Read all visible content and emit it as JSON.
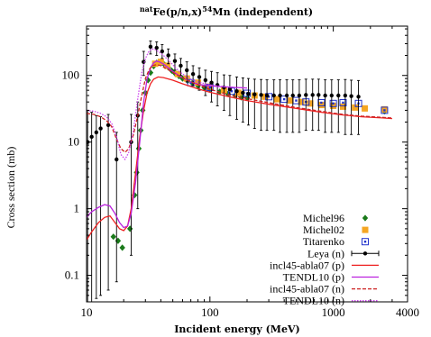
{
  "chart_data": {
    "type": "scatter",
    "title": "natFe(p/n,x)54Mn (independent)",
    "title_parts": {
      "sup_pre": "nat",
      "element": "Fe(p/n,x)",
      "sup_mass": "54",
      "product": "Mn (independent)"
    },
    "xlabel": "Incident energy (MeV)",
    "ylabel": "Cross section (mb)",
    "x_scale": "log",
    "y_scale": "log",
    "xlim": [
      10,
      4000
    ],
    "ylim": [
      0.04,
      550
    ],
    "x_ticks": [
      10,
      100,
      1000,
      4000
    ],
    "x_tick_labels": [
      "10",
      "100",
      "1000",
      "4000"
    ],
    "y_ticks": [
      0.1,
      1,
      10,
      100
    ],
    "y_tick_labels": [
      "0.1",
      "1",
      "10",
      "100"
    ],
    "grid": false,
    "legend_position": "bottom-right",
    "series": [
      {
        "name": "Michel96",
        "kind": "points",
        "marker": "diamond",
        "color": "#1a7a1a",
        "points": [
          [
            16.5,
            0.38
          ],
          [
            18.0,
            0.33
          ],
          [
            19.5,
            0.26
          ],
          [
            22.5,
            0.5
          ],
          [
            24.5,
            1.6
          ],
          [
            25.5,
            3.5
          ],
          [
            26.5,
            8.0
          ],
          [
            27.5,
            15.0
          ],
          [
            28.5,
            30.0
          ],
          [
            30.0,
            55.0
          ],
          [
            31.5,
            85.0
          ],
          [
            33.0,
            110.0
          ],
          [
            35.0,
            138.0
          ],
          [
            37.0,
            155.0
          ],
          [
            39.0,
            158.0
          ],
          [
            41.0,
            155.0
          ],
          [
            43.0,
            145.0
          ],
          [
            46.0,
            132.0
          ],
          [
            49.0,
            118.0
          ],
          [
            52.0,
            108.0
          ],
          [
            56.0,
            98.0
          ],
          [
            60.0,
            90.0
          ],
          [
            66.0,
            83.0
          ],
          [
            72.0,
            77.0
          ],
          [
            80.0,
            70.0
          ],
          [
            90.0,
            66.0
          ],
          [
            100.0,
            62.0
          ],
          [
            120.0,
            57.0
          ],
          [
            140.0,
            53.0
          ],
          [
            160.0,
            50.0
          ],
          [
            180.0,
            47.0
          ],
          [
            200.0,
            46.0
          ],
          [
            2600.0,
            29.0
          ]
        ]
      },
      {
        "name": "Michel02",
        "kind": "points",
        "marker": "square-filled",
        "color": "#f5a623",
        "points": [
          [
            36.0,
            150.0
          ],
          [
            40.0,
            160.0
          ],
          [
            45.0,
            140.0
          ],
          [
            55.0,
            105.0
          ],
          [
            65.0,
            90.0
          ],
          [
            80.0,
            78.0
          ],
          [
            100.0,
            68.0
          ],
          [
            130.0,
            60.0
          ],
          [
            170.0,
            55.0
          ],
          [
            230.0,
            50.0
          ],
          [
            280.0,
            48.0
          ],
          [
            350.0,
            44.0
          ],
          [
            450.0,
            42.0
          ],
          [
            550.0,
            40.0
          ],
          [
            650.0,
            38.0
          ],
          [
            800.0,
            36.0
          ],
          [
            1000.0,
            35.0
          ],
          [
            1200.0,
            34.0
          ],
          [
            1500.0,
            33.0
          ],
          [
            1800.0,
            32.0
          ],
          [
            2600.0,
            31.0
          ]
        ]
      },
      {
        "name": "Titarenko",
        "kind": "points",
        "marker": "square-open",
        "color": "#2233cc",
        "points": [
          [
            70.0,
            78.0
          ],
          [
            100.0,
            66.0
          ],
          [
            150.0,
            58.0
          ],
          [
            200.0,
            54.0
          ],
          [
            300.0,
            48.0
          ],
          [
            400.0,
            44.0
          ],
          [
            500.0,
            42.0
          ],
          [
            600.0,
            40.0
          ],
          [
            800.0,
            39.0
          ],
          [
            1000.0,
            38.0
          ],
          [
            1200.0,
            39.0
          ],
          [
            1600.0,
            38.0
          ],
          [
            2600.0,
            30.0
          ]
        ]
      },
      {
        "name": "Leya (n)",
        "kind": "errorbar",
        "marker": "dot",
        "color": "#000000",
        "points": [
          [
            10.2,
            10.0,
            0.04,
            30.0
          ],
          [
            11.0,
            12.0,
            0.04,
            28.0
          ],
          [
            12.0,
            14.0,
            0.045,
            25.0
          ],
          [
            13.0,
            16.0,
            0.05,
            24.0
          ],
          [
            15.0,
            18.0,
            0.06,
            26.0
          ],
          [
            17.5,
            5.5,
            0.08,
            14.0
          ],
          [
            23.0,
            10.0,
            0.2,
            26.0
          ],
          [
            26.0,
            25.0,
            1.0,
            40.0
          ],
          [
            29.0,
            160.0,
            100.0,
            230.0
          ],
          [
            33.0,
            270.0,
            210.0,
            330.0
          ],
          [
            37.0,
            260.0,
            200.0,
            320.0
          ],
          [
            41.0,
            230.0,
            180.0,
            290.0
          ],
          [
            46.0,
            200.0,
            150.0,
            250.0
          ],
          [
            52.0,
            165.0,
            120.0,
            210.0
          ],
          [
            58.0,
            140.0,
            100.0,
            180.0
          ],
          [
            65.0,
            120.0,
            80.0,
            160.0
          ],
          [
            73.0,
            105.0,
            70.0,
            140.0
          ],
          [
            82.0,
            95.0,
            60.0,
            130.0
          ],
          [
            92.0,
            85.0,
            50.0,
            120.0
          ],
          [
            103.0,
            78.0,
            40.0,
            115.0
          ],
          [
            115.0,
            72.0,
            35.0,
            110.0
          ],
          [
            130.0,
            66.0,
            30.0,
            102.0
          ],
          [
            145.0,
            62.0,
            25.0,
            100.0
          ],
          [
            165.0,
            58.0,
            22.0,
            95.0
          ],
          [
            185.0,
            55.0,
            20.0,
            92.0
          ],
          [
            205.0,
            53.0,
            18.0,
            90.0
          ],
          [
            230.0,
            52.0,
            16.0,
            88.0
          ],
          [
            260.0,
            51.0,
            15.0,
            87.0
          ],
          [
            290.0,
            50.0,
            15.0,
            86.0
          ],
          [
            330.0,
            50.0,
            15.0,
            86.0
          ],
          [
            370.0,
            50.0,
            14.0,
            86.0
          ],
          [
            420.0,
            50.0,
            14.0,
            86.0
          ],
          [
            470.0,
            50.0,
            14.0,
            86.0
          ],
          [
            530.0,
            50.0,
            14.0,
            86.0
          ],
          [
            600.0,
            51.0,
            15.0,
            88.0
          ],
          [
            680.0,
            51.0,
            15.0,
            88.0
          ],
          [
            760.0,
            51.0,
            15.0,
            88.0
          ],
          [
            860.0,
            50.0,
            14.0,
            86.0
          ],
          [
            970.0,
            50.0,
            14.0,
            86.0
          ],
          [
            1100.0,
            50.0,
            14.0,
            86.0
          ],
          [
            1250.0,
            50.0,
            13.0,
            87.0
          ],
          [
            1400.0,
            49.0,
            13.0,
            85.0
          ],
          [
            1600.0,
            48.0,
            13.0,
            84.0
          ]
        ]
      },
      {
        "name": "incl45-abla07 (p)",
        "kind": "line",
        "style": "solid",
        "color": "#ee2222",
        "points": [
          [
            10.0,
            0.34
          ],
          [
            11.0,
            0.45
          ],
          [
            12.5,
            0.62
          ],
          [
            14.0,
            0.74
          ],
          [
            15.5,
            0.78
          ],
          [
            17.0,
            0.62
          ],
          [
            18.5,
            0.5
          ],
          [
            20.0,
            0.47
          ],
          [
            21.5,
            0.55
          ],
          [
            23.0,
            1.0
          ],
          [
            25.0,
            3.5
          ],
          [
            27.0,
            12.0
          ],
          [
            29.0,
            30.0
          ],
          [
            31.0,
            55.0
          ],
          [
            33.0,
            75.0
          ],
          [
            35.0,
            88.0
          ],
          [
            38.0,
            95.0
          ],
          [
            42.0,
            93.0
          ],
          [
            50.0,
            85.0
          ],
          [
            60.0,
            75.0
          ],
          [
            80.0,
            63.0
          ],
          [
            100.0,
            56.0
          ],
          [
            150.0,
            47.0
          ],
          [
            200.0,
            42.0
          ],
          [
            300.0,
            37.0
          ],
          [
            500.0,
            32.0
          ],
          [
            800.0,
            28.0
          ],
          [
            1200.0,
            25.5
          ],
          [
            1700.0,
            24.0
          ],
          [
            2500.0,
            23.0
          ],
          [
            3000.0,
            22.5
          ]
        ]
      },
      {
        "name": "TENDL10 (p)",
        "kind": "line",
        "style": "solid",
        "color": "#bb22dd",
        "points": [
          [
            10.0,
            0.75
          ],
          [
            11.0,
            0.9
          ],
          [
            12.5,
            1.05
          ],
          [
            14.0,
            1.15
          ],
          [
            15.5,
            1.1
          ],
          [
            17.0,
            0.85
          ],
          [
            18.5,
            0.62
          ],
          [
            20.0,
            0.52
          ],
          [
            21.5,
            0.55
          ],
          [
            23.0,
            0.85
          ],
          [
            25.0,
            2.5
          ],
          [
            27.0,
            10.0
          ],
          [
            29.0,
            40.0
          ],
          [
            31.0,
            90.0
          ],
          [
            33.0,
            130.0
          ],
          [
            35.0,
            155.0
          ],
          [
            37.0,
            165.0
          ],
          [
            39.0,
            160.0
          ],
          [
            42.0,
            148.0
          ],
          [
            46.0,
            130.0
          ],
          [
            50.0,
            115.0
          ],
          [
            55.0,
            102.0
          ],
          [
            60.0,
            92.0
          ],
          [
            70.0,
            80.0
          ],
          [
            80.0,
            74.0
          ],
          [
            90.0,
            71.0
          ],
          [
            100.0,
            70.0
          ],
          [
            120.0,
            68.0
          ],
          [
            140.0,
            67.0
          ],
          [
            160.0,
            66.0
          ],
          [
            200.0,
            65.0
          ]
        ]
      },
      {
        "name": "incl45-abla07 (n)",
        "kind": "line",
        "style": "dashed",
        "color": "#cc2222",
        "points": [
          [
            10.0,
            27.0
          ],
          [
            11.5,
            26.0
          ],
          [
            13.0,
            24.0
          ],
          [
            14.5,
            21.0
          ],
          [
            16.0,
            17.0
          ],
          [
            17.5,
            11.0
          ],
          [
            19.0,
            8.0
          ],
          [
            20.5,
            7.0
          ],
          [
            22.0,
            8.0
          ],
          [
            24.0,
            13.0
          ],
          [
            26.0,
            25.0
          ],
          [
            28.0,
            50.0
          ],
          [
            30.0,
            90.0
          ],
          [
            32.0,
            120.0
          ],
          [
            34.0,
            140.0
          ],
          [
            37.0,
            145.0
          ],
          [
            40.0,
            140.0
          ],
          [
            45.0,
            125.0
          ],
          [
            55.0,
            100.0
          ],
          [
            70.0,
            80.0
          ],
          [
            100.0,
            62.0
          ],
          [
            150.0,
            50.0
          ],
          [
            200.0,
            45.0
          ],
          [
            300.0,
            39.0
          ],
          [
            500.0,
            33.0
          ],
          [
            800.0,
            29.0
          ],
          [
            1200.0,
            26.0
          ],
          [
            1700.0,
            24.5
          ],
          [
            2500.0,
            23.5
          ],
          [
            3000.0,
            23.0
          ]
        ]
      },
      {
        "name": "TENDL10 (n)",
        "kind": "line",
        "style": "dotted",
        "color": "#cc44ee",
        "points": [
          [
            10.0,
            30.0
          ],
          [
            11.5,
            29.0
          ],
          [
            13.0,
            27.0
          ],
          [
            14.5,
            24.0
          ],
          [
            16.0,
            19.0
          ],
          [
            17.5,
            12.0
          ],
          [
            19.0,
            6.5
          ],
          [
            20.5,
            5.5
          ],
          [
            22.0,
            7.0
          ],
          [
            24.0,
            15.0
          ],
          [
            26.0,
            45.0
          ],
          [
            28.0,
            110.0
          ],
          [
            30.0,
            180.0
          ],
          [
            32.0,
            230.0
          ],
          [
            34.0,
            250.0
          ],
          [
            36.0,
            245.0
          ],
          [
            38.0,
            230.0
          ],
          [
            42.0,
            200.0
          ],
          [
            46.0,
            170.0
          ],
          [
            50.0,
            145.0
          ],
          [
            55.0,
            120.0
          ],
          [
            60.0,
            105.0
          ],
          [
            70.0,
            88.0
          ],
          [
            80.0,
            80.0
          ],
          [
            100.0,
            72.0
          ],
          [
            130.0,
            68.0
          ],
          [
            170.0,
            66.0
          ],
          [
            200.0,
            65.0
          ]
        ]
      }
    ]
  }
}
